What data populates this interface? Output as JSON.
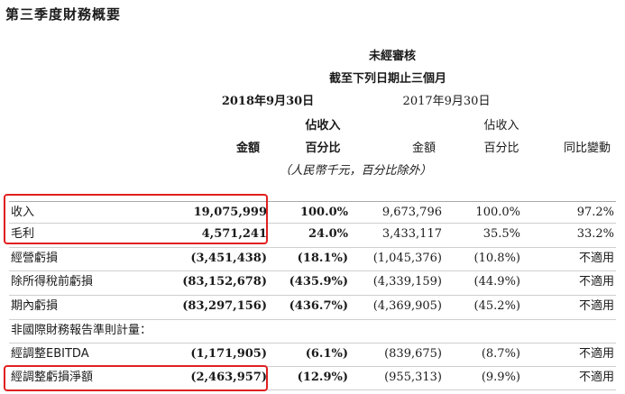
{
  "title": "第三季度財務概要",
  "header": {
    "unaudited": "未經審核",
    "period": "截至下列日期止三個月",
    "date_2018": "2018年9月30日",
    "date_2017": "2017年9月30日",
    "pct_rev_line1": "佔收入",
    "pct_rev_line2": "百分比",
    "amount": "金額",
    "yoy": "同比變動",
    "units": "（人民幣千元，百分比除外）"
  },
  "rows": [
    {
      "label": "收入",
      "amount_2018": "19,075,999",
      "pct_2018": "100.0%",
      "amount_2017": "9,673,796",
      "pct_2017": "100.0%",
      "yoy": "97.2%"
    },
    {
      "label": "毛利",
      "amount_2018": "4,571,241",
      "pct_2018": "24.0%",
      "amount_2017": "3,433,117",
      "pct_2017": "35.5%",
      "yoy": "33.2%"
    },
    {
      "label": "經營虧損",
      "amount_2018": "(3,451,438)",
      "pct_2018": "(18.1%)",
      "amount_2017": "(1,045,376)",
      "pct_2017": "(10.8%)",
      "yoy": "不適用"
    },
    {
      "label": "除所得稅前虧損",
      "amount_2018": "(83,152,678)",
      "pct_2018": "(435.9%)",
      "amount_2017": "(4,339,159)",
      "pct_2017": "(44.9%)",
      "yoy": "不適用"
    },
    {
      "label": "期內虧損",
      "amount_2018": "(83,297,156)",
      "pct_2018": "(436.7%)",
      "amount_2017": "(4,369,905)",
      "pct_2017": "(45.2%)",
      "yoy": "不適用"
    },
    {
      "label": "非國際財務報告準則計量：",
      "amount_2018": "",
      "pct_2018": "",
      "amount_2017": "",
      "pct_2017": "",
      "yoy": ""
    },
    {
      "label": "經調整EBITDA",
      "amount_2018": "(1,171,905)",
      "pct_2018": "(6.1%)",
      "amount_2017": "(839,675)",
      "pct_2017": "(8.7%)",
      "yoy": "不適用"
    },
    {
      "label": "經調整虧損淨額",
      "amount_2018": "(2,463,957)",
      "pct_2018": "(12.9%)",
      "amount_2017": "(955,313)",
      "pct_2017": "(9.9%)",
      "yoy": "不適用"
    }
  ],
  "highlight_color": "#e02020"
}
